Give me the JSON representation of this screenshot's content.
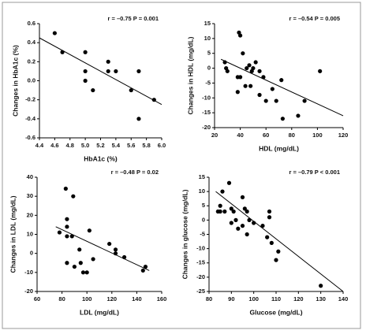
{
  "chart_data": [
    {
      "type": "scatter",
      "annotation": "r = –0.75 P = 0.001",
      "x_label": "HbA1c (%)",
      "y_label": "Changes in HbA1c (%)",
      "x": [
        4.6,
        4.7,
        5.0,
        5.0,
        5.0,
        5.1,
        5.3,
        5.3,
        5.4,
        5.6,
        5.7,
        5.7,
        5.9
      ],
      "values": [
        0.5,
        0.3,
        0.3,
        0.1,
        0.0,
        -0.1,
        0.2,
        0.1,
        0.1,
        -0.1,
        0.1,
        -0.4,
        -0.2
      ],
      "fit": {
        "x": [
          4.4,
          6.0
        ],
        "y": [
          0.45,
          -0.25
        ]
      },
      "color": "#000000",
      "xlim": [
        4.4,
        6.0
      ],
      "xticks": [
        4.4,
        4.6,
        4.8,
        {
          "value": 5,
          "label": "5.0"
        },
        5.2,
        5.4,
        5.6,
        5.8,
        {
          "value": 6,
          "label": "6.0"
        }
      ],
      "ylim": [
        -0.6,
        0.6
      ],
      "yticks": [
        -0.6,
        -0.4,
        -0.2,
        {
          "value": 0,
          "label": "0.0"
        },
        0.2,
        0.4,
        0.6
      ]
    },
    {
      "type": "scatter",
      "annotation": "r = –0.54 P = 0.005",
      "x_label": "HDL (mg/dL)",
      "y_label": "Changes in HDL (mg/dL)",
      "x": [
        28,
        29,
        30,
        38,
        38,
        39,
        40,
        40,
        42,
        44,
        45,
        47,
        48,
        49,
        50,
        52,
        55,
        55,
        58,
        60,
        65,
        68,
        72,
        73,
        85,
        90,
        102
      ],
      "values": [
        2,
        0,
        -1,
        -3,
        -8,
        12,
        11,
        -3,
        5,
        -6,
        0,
        1,
        -6,
        -1,
        0,
        2,
        -1,
        -9,
        -3,
        -11,
        -7,
        -11,
        -4,
        -17,
        -16,
        -11,
        -1
      ],
      "fit": {
        "x": [
          25,
          120
        ],
        "y": [
          3,
          -16
        ]
      },
      "color": "#000000",
      "xlim": [
        20,
        120
      ],
      "xticks": [
        20,
        40,
        60,
        80,
        100,
        120
      ],
      "ylim": [
        -20,
        15
      ],
      "yticks": [
        -20,
        -15,
        -10,
        -5,
        0,
        5,
        10,
        15
      ]
    },
    {
      "type": "scatter",
      "annotation": "r = –0.48 P = 0.02",
      "x_label": "LDL (mg/dL)",
      "y_label": "Changes in LDL (mg/dL)",
      "x": [
        78,
        83,
        84,
        84,
        84,
        84,
        88,
        89,
        90,
        94,
        95,
        97,
        100,
        102,
        105,
        118,
        123,
        123,
        130,
        145,
        147
      ],
      "values": [
        11,
        34,
        18,
        14,
        9,
        -5,
        9,
        30,
        -7,
        2,
        -5,
        -10,
        -10,
        12,
        -3,
        5,
        2,
        0,
        -2,
        -9,
        -7
      ],
      "fit": {
        "x": [
          75,
          150
        ],
        "y": [
          14,
          -9
        ]
      },
      "color": "#000000",
      "xlim": [
        60,
        160
      ],
      "xticks": [
        60,
        80,
        100,
        120,
        140,
        160
      ],
      "ylim": [
        -20,
        40
      ],
      "yticks": [
        -20,
        -10,
        0,
        10,
        20,
        30,
        40
      ]
    },
    {
      "type": "scatter",
      "annotation": "r = –0.79 P < 0.001",
      "x_label": "Glucose (mg/dL)",
      "y_label": "Changes in glucose (mg/dL)",
      "x": [
        84,
        85,
        85,
        86,
        87,
        89,
        90,
        90,
        91,
        92,
        93,
        95,
        95,
        96,
        97,
        97,
        98,
        100,
        104,
        106,
        107,
        107,
        108,
        110,
        111,
        130
      ],
      "values": [
        3,
        5,
        3,
        10,
        3,
        13,
        4,
        -1,
        3,
        0,
        -3,
        8,
        -2,
        4,
        3,
        -5,
        0,
        -1,
        -2,
        -6,
        1,
        3,
        -8,
        -14,
        -11,
        -23
      ],
      "fit": {
        "x": [
          83,
          140
        ],
        "y": [
          10,
          -25
        ]
      },
      "color": "#000000",
      "xlim": [
        80,
        140
      ],
      "xticks": [
        80,
        90,
        100,
        110,
        120,
        130,
        140
      ],
      "ylim": [
        -25,
        15
      ],
      "yticks": [
        -25,
        -20,
        -15,
        -10,
        -5,
        0,
        5,
        10,
        15
      ]
    }
  ]
}
